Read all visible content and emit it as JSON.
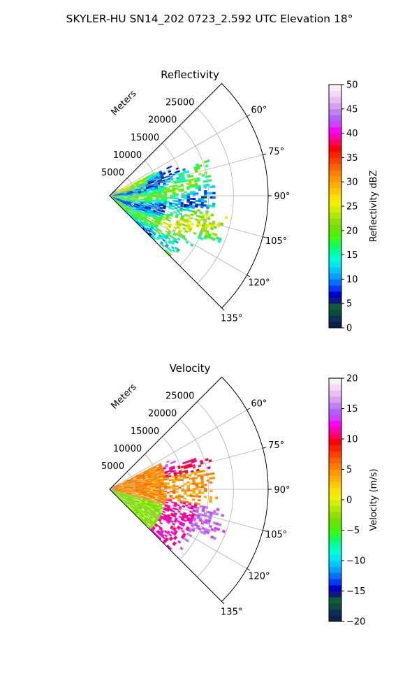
{
  "figure": {
    "title": "SKYLER-HU  SN14_202  0723_2.592 UTC Elevation 18°"
  },
  "chart_data": [
    {
      "type": "polar-sector",
      "title": "Reflectivity",
      "radius_label": "Meters",
      "radial_ticks": [
        5000,
        10000,
        15000,
        20000,
        25000
      ],
      "radial_tick_labels": [
        "5000",
        "10000",
        "15000",
        "20000",
        "25000"
      ],
      "theta_ticks_deg": [
        60,
        75,
        90,
        105,
        120,
        135
      ],
      "theta_tick_labels": [
        "60°",
        "75°",
        "90°",
        "105°",
        "120°",
        "135°"
      ],
      "theta_range_deg": [
        45,
        135
      ],
      "rmax": 32000,
      "grid": true,
      "colorbar": {
        "label": "Reflectivity dBZ",
        "range": [
          0,
          50
        ],
        "ticks": [
          0,
          5,
          10,
          15,
          20,
          25,
          30,
          35,
          40,
          45,
          50
        ],
        "tick_labels": [
          "0",
          "5",
          "10",
          "15",
          "20",
          "25",
          "30",
          "35",
          "40",
          "45",
          "50"
        ],
        "colors": [
          "#0b1f4a",
          "#0d2e55",
          "#0c4a3a",
          "#0b5e3a",
          "#0a1a80",
          "#0000c8",
          "#0038ff",
          "#0070ff",
          "#00a0ff",
          "#00c8ff",
          "#00e8f0",
          "#00ffd0",
          "#00ffa0",
          "#10ff60",
          "#30ff20",
          "#50f000",
          "#70e000",
          "#90e000",
          "#b0e800",
          "#d0f000",
          "#f0f000",
          "#ffe000",
          "#ffc800",
          "#ffb000",
          "#ff9800",
          "#ff8000",
          "#ff6000",
          "#ff4000",
          "#ff2000",
          "#ff0000",
          "#ff0060",
          "#ff00b0",
          "#ff00ff",
          "#d040ff",
          "#b060ff",
          "#c080f0",
          "#d8a0f0",
          "#e8c0f0",
          "#f4d8f8",
          "#fbeefc"
        ]
      },
      "field_summary": "Echoes concentrated within ~21000 m, mostly 10–20 dBZ (cyan to green), a few orange-red cells near the radar"
    },
    {
      "type": "polar-sector",
      "title": "Velocity",
      "radius_label": "Meters",
      "radial_ticks": [
        5000,
        10000,
        15000,
        20000,
        25000
      ],
      "radial_tick_labels": [
        "5000",
        "10000",
        "15000",
        "20000",
        "25000"
      ],
      "theta_ticks_deg": [
        60,
        75,
        90,
        105,
        120,
        135
      ],
      "theta_tick_labels": [
        "60°",
        "75°",
        "90°",
        "105°",
        "120°",
        "135°"
      ],
      "theta_range_deg": [
        45,
        135
      ],
      "rmax": 32000,
      "grid": true,
      "colorbar": {
        "label": "Velocity (m/s)",
        "range": [
          -20,
          20
        ],
        "ticks": [
          -20,
          -15,
          -10,
          -5,
          0,
          5,
          10,
          15,
          20
        ],
        "tick_labels": [
          "−20",
          "−15",
          "−10",
          "−5",
          "0",
          "5",
          "10",
          "15",
          "20"
        ],
        "colors": [
          "#0b1f4a",
          "#0d2e55",
          "#0c4a3a",
          "#0b5e3a",
          "#0a1a80",
          "#0000c8",
          "#0038ff",
          "#0070ff",
          "#00a0ff",
          "#00c8ff",
          "#00e8f0",
          "#00ffd0",
          "#00ffa0",
          "#10ff60",
          "#30ff20",
          "#50f000",
          "#70e000",
          "#90e000",
          "#b0e800",
          "#d0f000",
          "#f0f000",
          "#ffe000",
          "#ffc800",
          "#ffb000",
          "#ff9800",
          "#ff8000",
          "#ff6000",
          "#ff4000",
          "#ff2000",
          "#ff0000",
          "#ff0060",
          "#ff00b0",
          "#ff00ff",
          "#d040ff",
          "#b060ff",
          "#c080f0",
          "#d8a0f0",
          "#e8c0f0",
          "#f4d8f8",
          "#fbeefc"
        ]
      },
      "field_summary": "Mostly 0–10 m/s (yellow to orange) with some −5 m/s (green) on the lower-left edge and 10–15 m/s (red/magenta) cells"
    }
  ]
}
